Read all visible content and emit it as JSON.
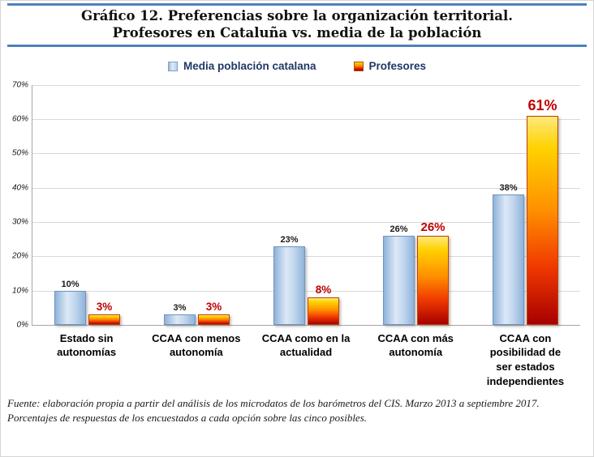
{
  "header": {
    "title_line1": "Gráfico 12. Preferencias sobre la organización territorial.",
    "title_line2": "Profesores en Cataluña vs. media de la población"
  },
  "legend": {
    "items": [
      {
        "label": "Media población catalana",
        "swatch_color": "#b9cfe9"
      },
      {
        "label": "Profesores",
        "swatch_color": "#e85a00"
      }
    ]
  },
  "chart_data": {
    "type": "bar",
    "title": "Gráfico 12. Preferencias sobre la organización territorial. Profesores en Cataluña vs. media de la población",
    "categories": [
      "Estado sin\nautonomías",
      "CCAA con menos\nautonomía",
      "CCAA como en la\nactualidad",
      "CCAA con más\nautonomía",
      "CCAA con\nposibilidad de\nser estados\nindependientes"
    ],
    "series": [
      {
        "name": "Media población catalana",
        "values": [
          10,
          3,
          23,
          26,
          38
        ],
        "labels": [
          "10%",
          "3%",
          "23%",
          "26%",
          "38%"
        ],
        "color": "#b9cfe9",
        "label_color": "#1a1a1a"
      },
      {
        "name": "Profesores",
        "values": [
          3,
          3,
          8,
          26,
          61
        ],
        "labels": [
          "3%",
          "3%",
          "8%",
          "26%",
          "61%"
        ],
        "color": "#e85a00",
        "label_color": "#c00000"
      }
    ],
    "xlabel": "",
    "ylabel": "",
    "ylim": [
      0,
      70
    ],
    "ytick_step": 10,
    "ytick_labels": [
      "0%",
      "10%",
      "20%",
      "30%",
      "40%",
      "50%",
      "60%",
      "70%"
    ],
    "grid": true,
    "legend_position": "top"
  },
  "footer": {
    "source_text": "Fuente: elaboración propia a partir del análisis de los microdatos de los barómetros del CIS. Marzo 2013 a septiembre 2017. Porcentajes de respuestas de los encuestados a cada opción sobre las cinco posibles."
  }
}
